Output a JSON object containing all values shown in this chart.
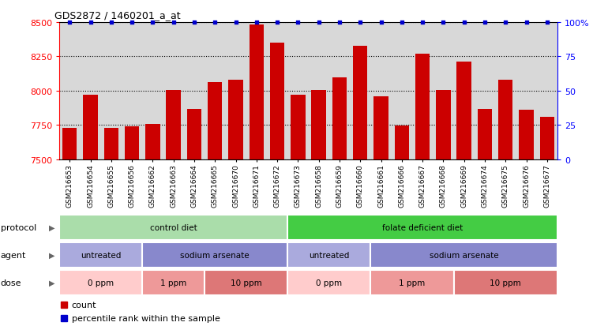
{
  "title": "GDS2872 / 1460201_a_at",
  "samples": [
    "GSM216653",
    "GSM216654",
    "GSM216655",
    "GSM216656",
    "GSM216662",
    "GSM216663",
    "GSM216664",
    "GSM216665",
    "GSM216670",
    "GSM216671",
    "GSM216672",
    "GSM216673",
    "GSM216658",
    "GSM216659",
    "GSM216660",
    "GSM216661",
    "GSM216666",
    "GSM216667",
    "GSM216668",
    "GSM216669",
    "GSM216674",
    "GSM216675",
    "GSM216676",
    "GSM216677"
  ],
  "counts": [
    7730,
    7970,
    7730,
    7740,
    7760,
    8005,
    7870,
    8060,
    8080,
    8480,
    8350,
    7970,
    8005,
    8100,
    8330,
    7960,
    7745,
    8270,
    8005,
    8210,
    7870,
    8080,
    7860,
    7810
  ],
  "percentile": [
    100,
    100,
    100,
    100,
    100,
    100,
    100,
    100,
    100,
    100,
    100,
    100,
    100,
    100,
    100,
    100,
    100,
    100,
    100,
    100,
    100,
    100,
    100,
    100
  ],
  "ylim_left": [
    7500,
    8500
  ],
  "ylim_right": [
    0,
    100
  ],
  "yticks_left": [
    7500,
    7750,
    8000,
    8250,
    8500
  ],
  "yticks_right": [
    0,
    25,
    50,
    75,
    100
  ],
  "bar_color": "#cc0000",
  "percentile_color": "#0000cc",
  "bg_color": "#d8d8d8",
  "xtick_bg": "#c8c8c8",
  "protocol_row": {
    "label": "protocol",
    "groups": [
      {
        "text": "control diet",
        "start": 0,
        "end": 11,
        "color": "#aaddaa"
      },
      {
        "text": "folate deficient diet",
        "start": 11,
        "end": 24,
        "color": "#44cc44"
      }
    ]
  },
  "agent_row": {
    "label": "agent",
    "groups": [
      {
        "text": "untreated",
        "start": 0,
        "end": 4,
        "color": "#aaaadd"
      },
      {
        "text": "sodium arsenate",
        "start": 4,
        "end": 11,
        "color": "#8888cc"
      },
      {
        "text": "untreated",
        "start": 11,
        "end": 15,
        "color": "#aaaadd"
      },
      {
        "text": "sodium arsenate",
        "start": 15,
        "end": 24,
        "color": "#8888cc"
      }
    ]
  },
  "dose_row": {
    "label": "dose",
    "groups": [
      {
        "text": "0 ppm",
        "start": 0,
        "end": 4,
        "color": "#ffcccc"
      },
      {
        "text": "1 ppm",
        "start": 4,
        "end": 7,
        "color": "#ee9999"
      },
      {
        "text": "10 ppm",
        "start": 7,
        "end": 11,
        "color": "#dd7777"
      },
      {
        "text": "0 ppm",
        "start": 11,
        "end": 15,
        "color": "#ffcccc"
      },
      {
        "text": "1 ppm",
        "start": 15,
        "end": 19,
        "color": "#ee9999"
      },
      {
        "text": "10 ppm",
        "start": 19,
        "end": 24,
        "color": "#dd7777"
      }
    ]
  },
  "legend": [
    {
      "color": "#cc0000",
      "label": "count"
    },
    {
      "color": "#0000cc",
      "label": "percentile rank within the sample"
    }
  ]
}
